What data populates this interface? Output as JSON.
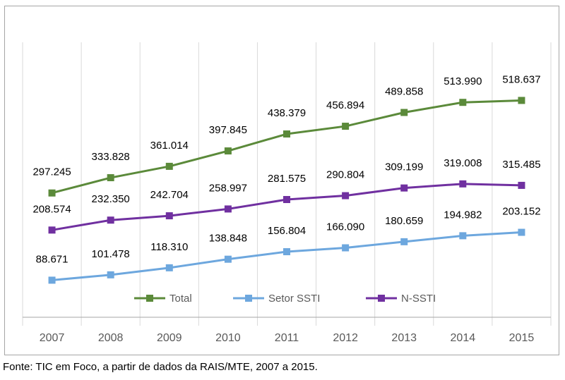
{
  "chart_data": {
    "type": "line",
    "categories": [
      "2007",
      "2008",
      "2009",
      "2010",
      "2011",
      "2012",
      "2013",
      "2014",
      "2015"
    ],
    "series": [
      {
        "name": "Total",
        "color": "#5b8a3a",
        "values": [
          297245,
          333828,
          361014,
          397845,
          438379,
          456894,
          489858,
          513990,
          518637
        ],
        "labels": [
          "297.245",
          "333.828",
          "361.014",
          "397.845",
          "438.379",
          "456.894",
          "489.858",
          "513.990",
          "518.637"
        ]
      },
      {
        "name": "Setor SSTI",
        "color": "#6da7de",
        "values": [
          88671,
          101478,
          118310,
          138848,
          156804,
          166090,
          180659,
          194982,
          203152
        ],
        "labels": [
          "88.671",
          "101.478",
          "118.310",
          "138.848",
          "156.804",
          "166.090",
          "180.659",
          "194.982",
          "203.152"
        ]
      },
      {
        "name": "N-SSTI",
        "color": "#7030a0",
        "values": [
          208574,
          232350,
          242704,
          258997,
          281575,
          290804,
          309199,
          319008,
          315485
        ],
        "labels": [
          "208.574",
          "232.350",
          "242.704",
          "258.997",
          "281.575",
          "290.804",
          "309.199",
          "319.008",
          "315.485"
        ]
      }
    ],
    "ylim": [
      0,
      600000
    ],
    "grid": "vertical",
    "legend": "bottom-inside"
  },
  "source": "Fonte: TIC em Foco, a partir de dados da RAIS/MTE, 2007 a 2015."
}
